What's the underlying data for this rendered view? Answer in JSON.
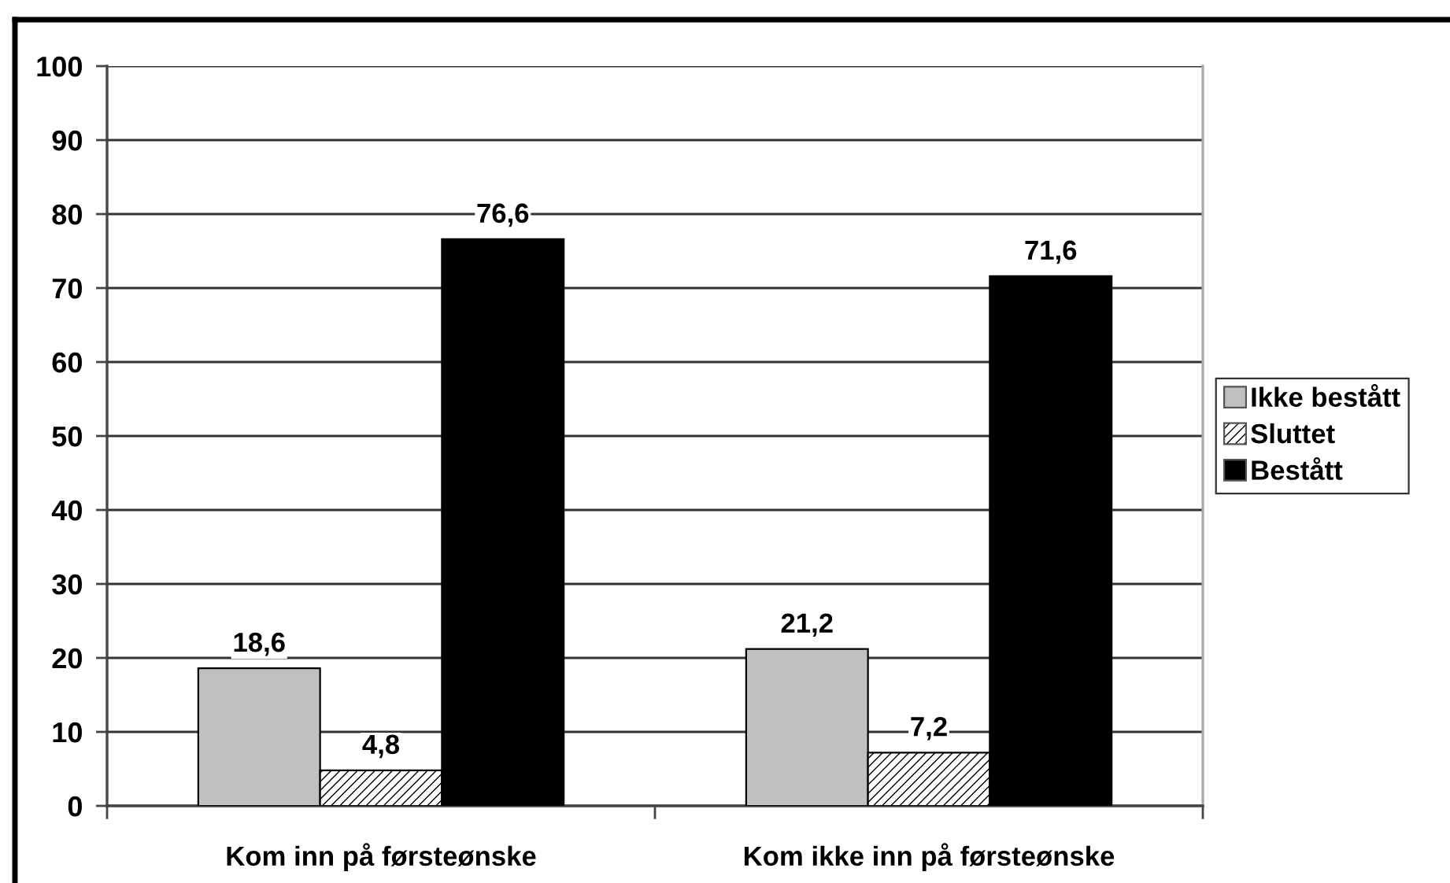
{
  "chart_data": {
    "type": "bar",
    "categories": [
      "Kom inn på førsteønske",
      "Kom ikke inn på førsteønske"
    ],
    "series": [
      {
        "name": "Ikke bestått",
        "color": "#c0c0c0",
        "values": [
          18.6,
          21.2
        ],
        "value_labels": [
          "18,6",
          "21,2"
        ]
      },
      {
        "name": "Sluttet",
        "color": "#000000",
        "values": [
          4.8,
          7.2
        ],
        "value_labels": [
          "4,8",
          "7,2"
        ]
      },
      {
        "name": "Bestått",
        "color": "#000000",
        "values": [
          76.6,
          71.6
        ],
        "value_labels": [
          "76,6",
          "71,6"
        ]
      }
    ],
    "ylim": [
      0,
      100
    ],
    "yticks": [
      0,
      10,
      20,
      30,
      40,
      50,
      60,
      70,
      80,
      90,
      100
    ],
    "grid": "y",
    "legend": "right"
  }
}
